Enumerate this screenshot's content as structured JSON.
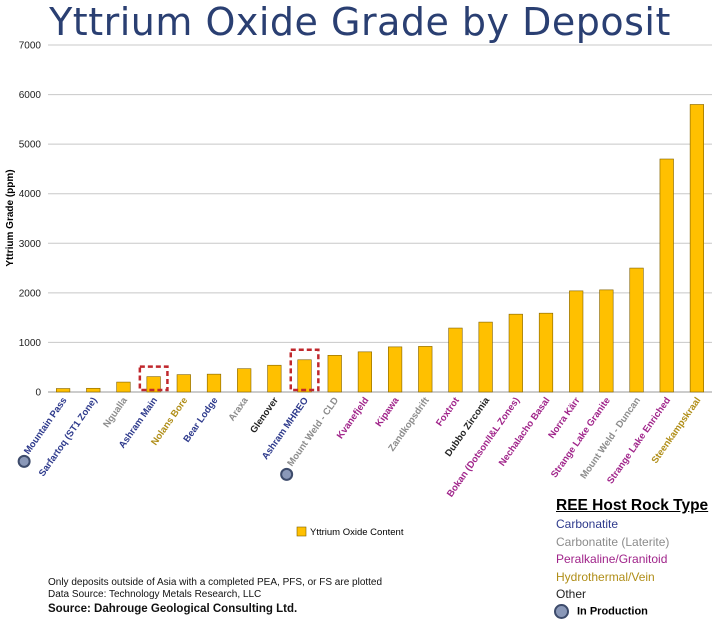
{
  "chart_data": {
    "type": "bar",
    "title": "Yttrium Oxide Grade by Deposit",
    "ylabel": "Yttrium Grade (ppm)",
    "ylim": [
      0,
      7000
    ],
    "yticks": [
      0,
      1000,
      2000,
      3000,
      4000,
      5000,
      6000,
      7000
    ],
    "grid": true,
    "categories": [
      "Mountain Pass",
      "Sarfartoq (ST1 Zone)",
      "Ngualla",
      "Ashram Main",
      "Nolans Bore",
      "Bear Lodge",
      "Araxa",
      "Glenover",
      "Ashram MHREO",
      "Mount Weld - CLD",
      "Kvanefjeld",
      "Kipawa",
      "Zandkopsdrift",
      "Foxtrot",
      "Dubbo Zirconia",
      "Bokan (Dotson/I&L Zones)",
      "Nechalacho Basal",
      "Norra Kärr",
      "Strange Lake Granite",
      "Mount Weld - Duncan",
      "Strange Lake Enriched",
      "Steenkampskraal"
    ],
    "rock_types": [
      "Carbonatite",
      "Carbonatite",
      "Carbonatite (Laterite)",
      "Carbonatite",
      "Hydrothermal/Vein",
      "Carbonatite",
      "Carbonatite (Laterite)",
      "Other",
      "Carbonatite",
      "Carbonatite (Laterite)",
      "Peralkaline/Granitoid",
      "Peralkaline/Granitoid",
      "Carbonatite (Laterite)",
      "Peralkaline/Granitoid",
      "Other",
      "Peralkaline/Granitoid",
      "Peralkaline/Granitoid",
      "Peralkaline/Granitoid",
      "Peralkaline/Granitoid",
      "Carbonatite (Laterite)",
      "Peralkaline/Granitoid",
      "Hydrothermal/Vein"
    ],
    "in_production": [
      true,
      false,
      false,
      false,
      false,
      false,
      false,
      false,
      false,
      true,
      false,
      false,
      false,
      false,
      false,
      false,
      false,
      false,
      false,
      false,
      false,
      false
    ],
    "highlighted": [
      false,
      false,
      false,
      true,
      false,
      false,
      false,
      false,
      true,
      false,
      false,
      false,
      false,
      false,
      false,
      false,
      false,
      false,
      false,
      false,
      false,
      false
    ],
    "series": [
      {
        "name": "Yttrium Oxide Content",
        "values": [
          70,
          75,
          200,
          310,
          350,
          360,
          470,
          540,
          650,
          740,
          810,
          910,
          920,
          1290,
          1410,
          1570,
          1590,
          2040,
          2060,
          2500,
          4700,
          5800
        ]
      }
    ],
    "legend_position": "bottom-center"
  },
  "colors": {
    "bar": "#FFC000",
    "bar_edge": "#7f6000",
    "title": "#2a3f72",
    "highlight_box": "#c0282d",
    "Carbonatite": "#2e3a8c",
    "Carbonatite (Laterite)": "#8c8c8c",
    "Peralkaline/Granitoid": "#a0248a",
    "Hydrothermal/Vein": "#b08e18",
    "Other": "#222222"
  },
  "rock_legend": {
    "heading": "REE Host Rock Type",
    "items": [
      {
        "label": "Carbonatite",
        "color": "#2e3a8c"
      },
      {
        "label": "Carbonatite (Laterite)",
        "color": "#8c8c8c"
      },
      {
        "label": "Peralkaline/Granitoid",
        "color": "#a0248a"
      },
      {
        "label": "Hydrothermal/Vein",
        "color": "#b08e18"
      },
      {
        "label": "Other",
        "color": "#222222"
      }
    ],
    "production_label": "In Production"
  },
  "notes": {
    "line1": "Only deposits outside of Asia with a completed PEA, PFS, or FS are plotted",
    "line2": "Data Source: Technology Metals Research, LLC",
    "source": "Source: Dahrouge Geological Consulting Ltd."
  }
}
